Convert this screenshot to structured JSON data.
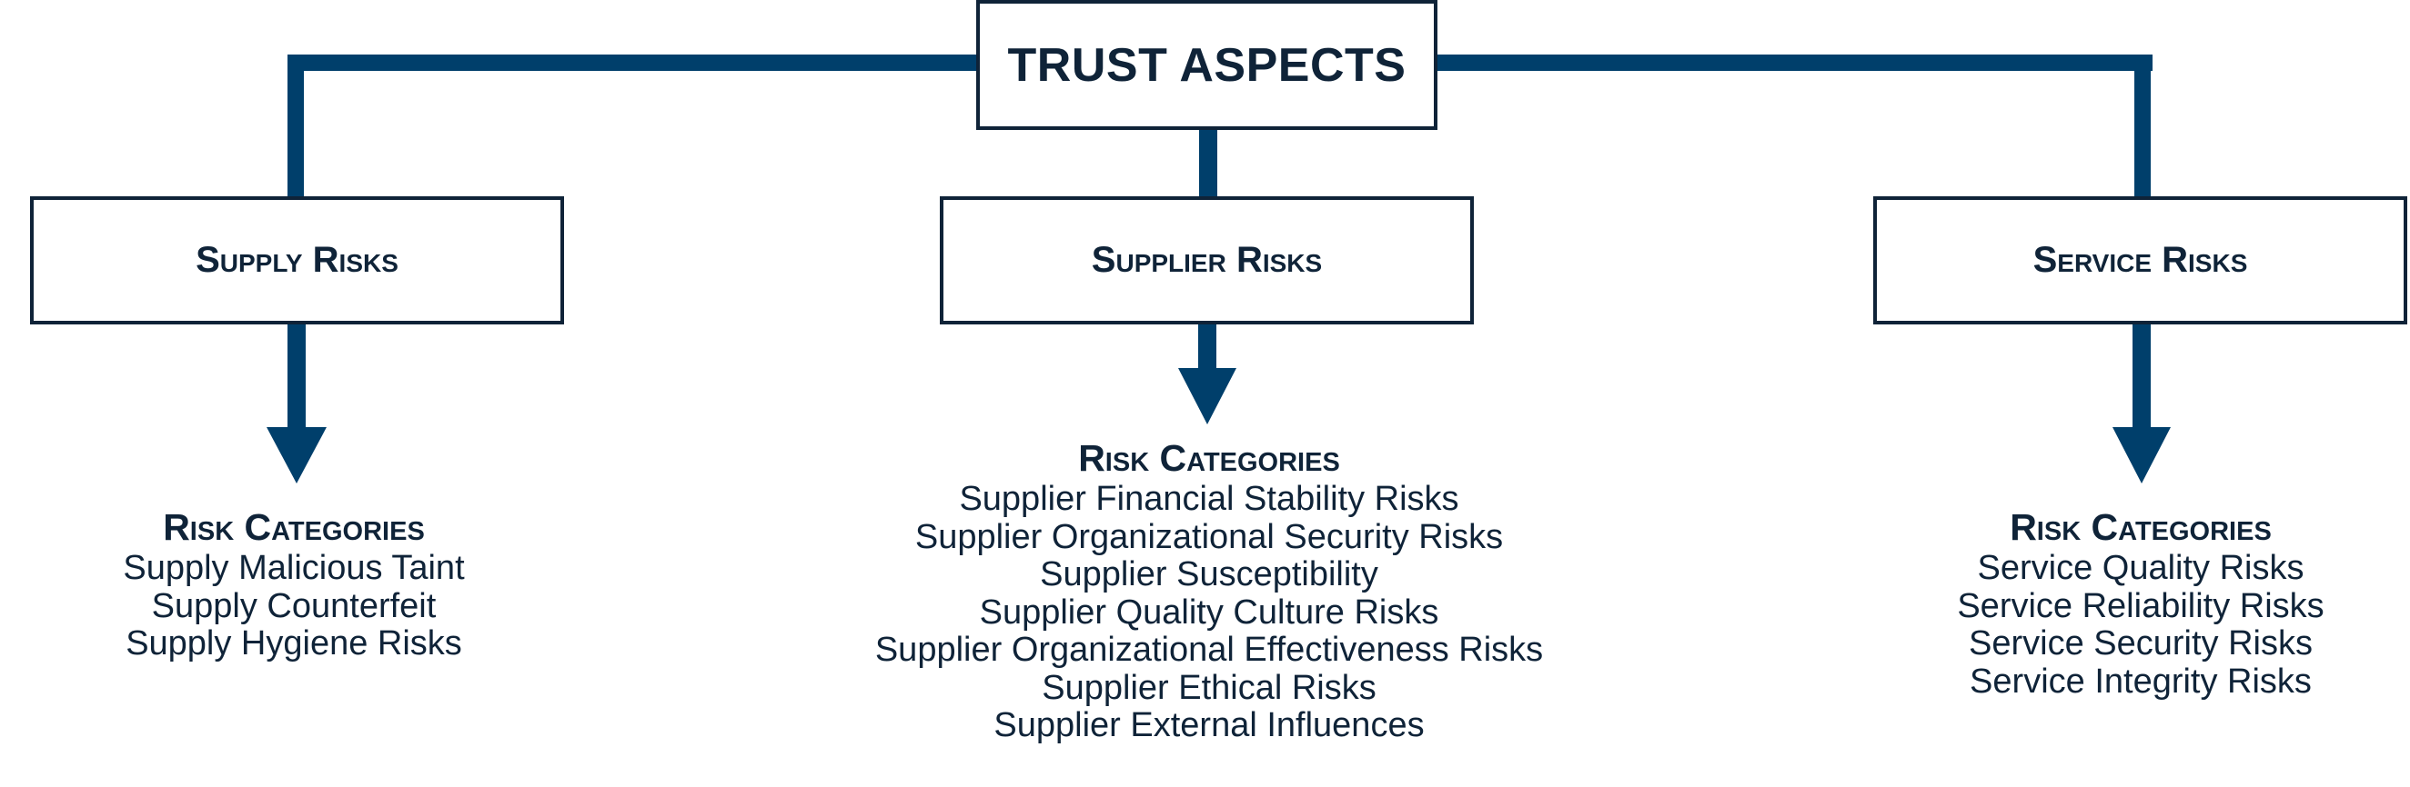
{
  "colors": {
    "connector": "#003f6b",
    "box_border": "#0f2338",
    "text": "#0f2338"
  },
  "root": {
    "label": "TRUST ASPECTS"
  },
  "aspects": [
    {
      "label": "Supply Risks",
      "categories_heading": "Risk Categories",
      "categories": [
        "Supply Malicious Taint",
        "Supply Counterfeit",
        "Supply Hygiene Risks"
      ]
    },
    {
      "label": "Supplier Risks",
      "categories_heading": "Risk Categories",
      "categories": [
        "Supplier Financial Stability Risks",
        "Supplier Organizational Security Risks",
        "Supplier Susceptibility",
        "Supplier Quality Culture Risks",
        "Supplier Organizational Effectiveness Risks",
        "Supplier Ethical Risks",
        "Supplier External Influences"
      ]
    },
    {
      "label": "Service Risks",
      "categories_heading": "Risk Categories",
      "categories": [
        "Service Quality Risks",
        "Service Reliability Risks",
        "Service Security Risks",
        "Service Integrity Risks"
      ]
    }
  ]
}
